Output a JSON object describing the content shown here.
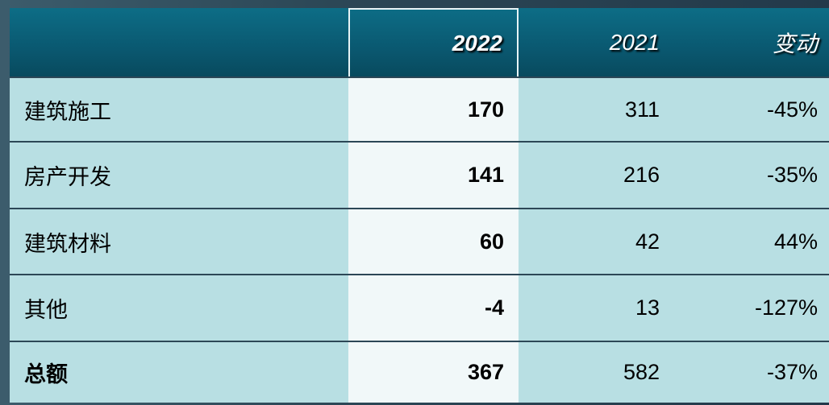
{
  "table": {
    "header": [
      "2022",
      "2021",
      "变动"
    ],
    "rows": [
      [
        "建筑施工",
        "170",
        "311",
        "-45%"
      ],
      [
        "房产开发",
        "141",
        "216",
        "-35%"
      ],
      [
        "建筑材料",
        "60",
        "42",
        "44%"
      ],
      [
        "其他",
        "-4",
        "13",
        "-127%"
      ],
      [
        "总额",
        "367",
        "582",
        "-37%"
      ]
    ]
  }
}
